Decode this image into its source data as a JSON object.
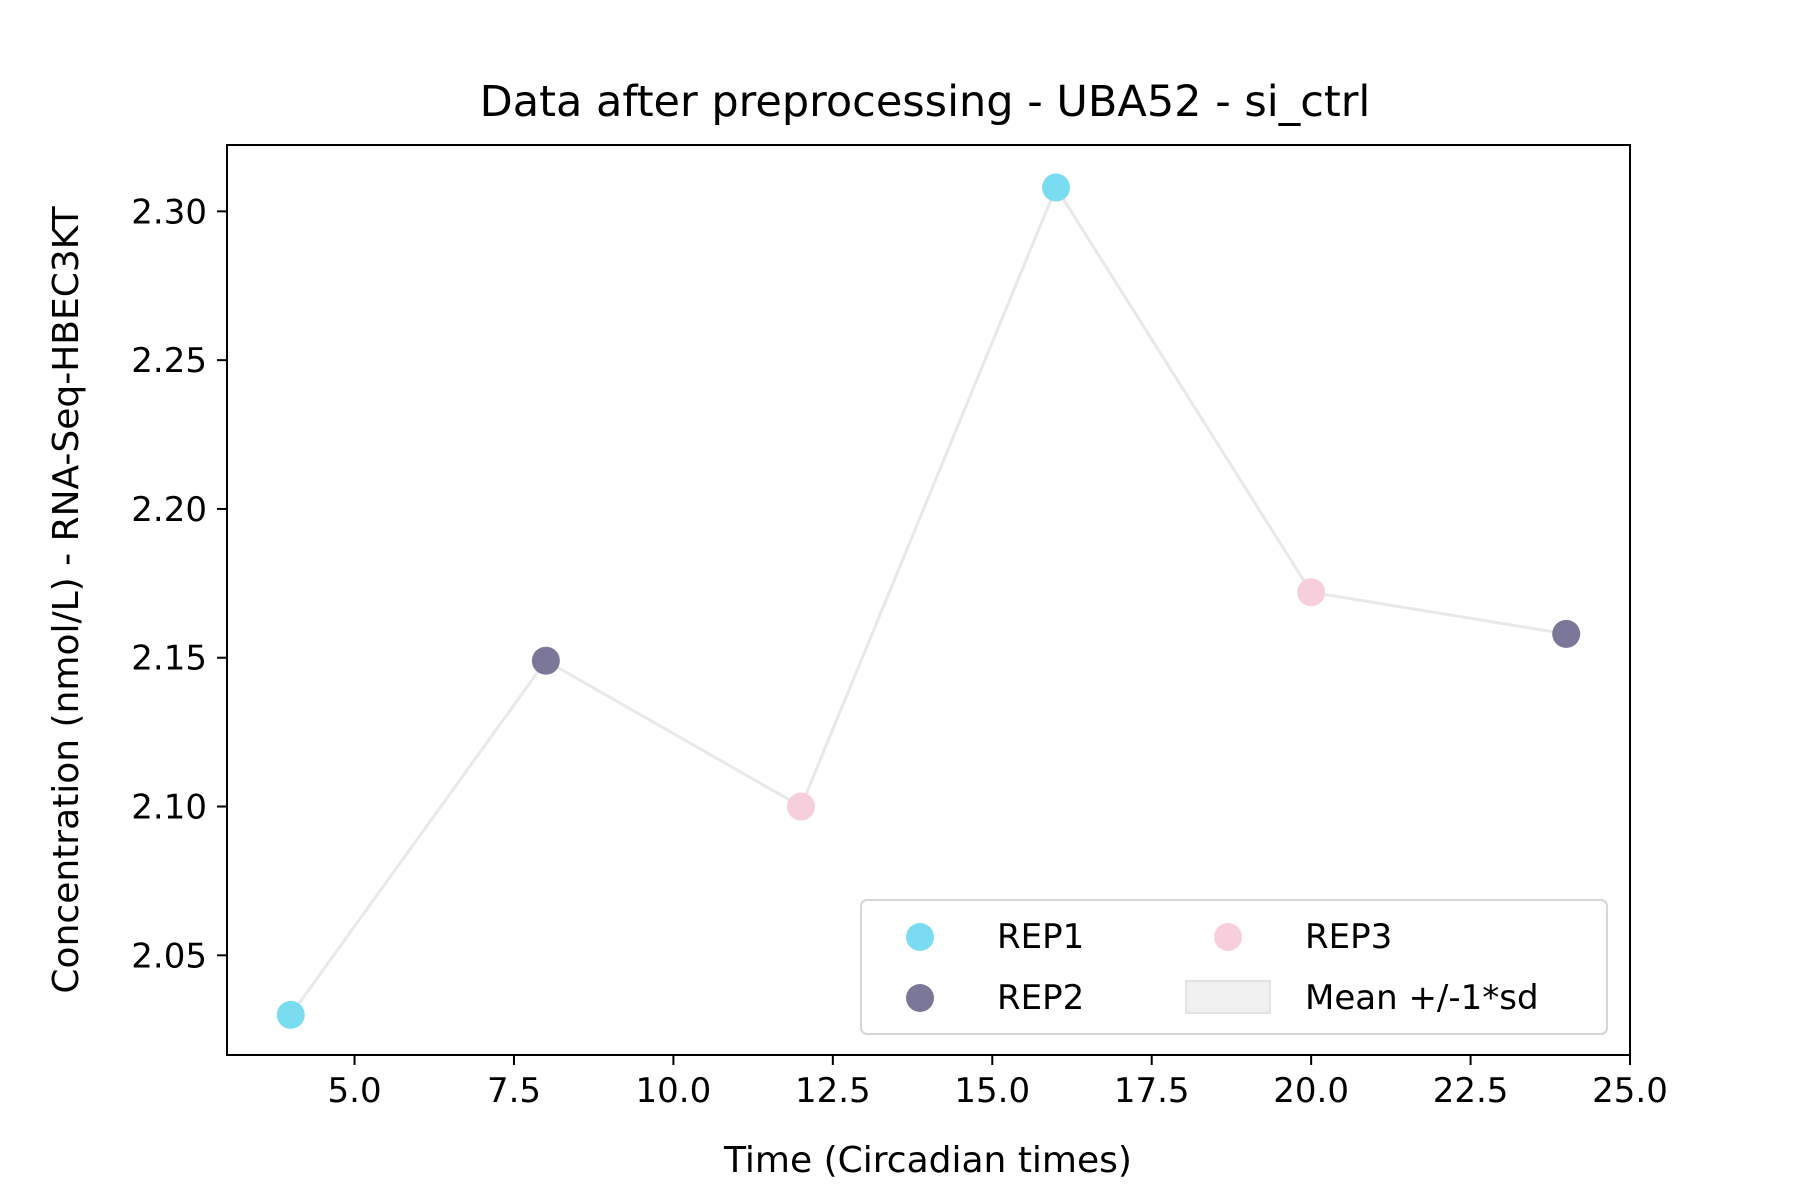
{
  "chart_data": {
    "type": "scatter",
    "title": "Data after preprocessing - UBA52 - si_ctrl",
    "xlabel": "Time (Circadian times)",
    "ylabel": "Concentration (nmol/L) - RNA-Seq-HBEC3KT",
    "xlim": [
      3.0,
      25.0
    ],
    "ylim": [
      2.0165,
      2.3223
    ],
    "x_ticks": [
      "5.0",
      "7.5",
      "10.0",
      "12.5",
      "15.0",
      "17.5",
      "20.0",
      "22.5",
      "25.0"
    ],
    "y_ticks": [
      "2.05",
      "2.10",
      "2.15",
      "2.20",
      "2.25",
      "2.30"
    ],
    "grid": false,
    "legend_position": "lower right",
    "series": [
      {
        "name": "REP1",
        "color": "#7adcf0",
        "points": [
          [
            4,
            2.03
          ],
          [
            16,
            2.308
          ]
        ]
      },
      {
        "name": "REP2",
        "color": "#7a7798",
        "points": [
          [
            8,
            2.149
          ],
          [
            24,
            2.158
          ]
        ]
      },
      {
        "name": "REP3",
        "color": "#f7cfdc",
        "points": [
          [
            12,
            2.1
          ],
          [
            20,
            2.172
          ]
        ]
      }
    ],
    "mean_line": {
      "name": "Mean +/-1*sd",
      "color": "#e8e8e8",
      "x": [
        4,
        8,
        12,
        16,
        20,
        24
      ],
      "y": [
        2.03,
        2.149,
        2.1,
        2.308,
        2.172,
        2.158
      ]
    }
  }
}
